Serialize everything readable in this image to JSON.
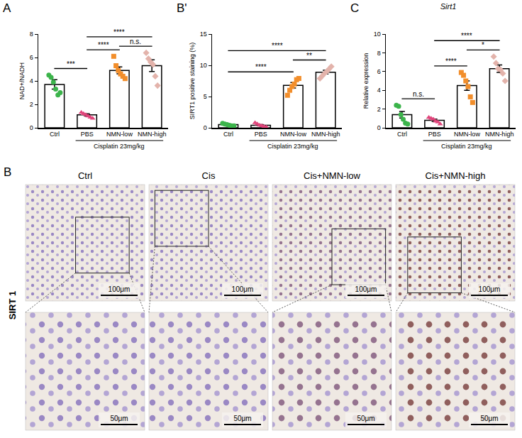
{
  "panels": [
    "A",
    "B'",
    "C"
  ],
  "chart_data": [
    {
      "type": "bar",
      "ylabel": "NAD+/NADH",
      "categories": [
        "Ctrl",
        "PBS",
        "NMN-low",
        "NMN-high"
      ],
      "values": [
        3.7,
        1.1,
        4.9,
        5.3
      ],
      "errors": [
        0.4,
        0.1,
        0.3,
        0.5
      ],
      "points": [
        [
          4.5,
          4.3,
          3.9,
          3.3,
          2.8,
          3.0
        ],
        [
          1.3,
          1.2,
          1.1,
          1.0,
          0.9,
          0.8
        ],
        [
          6.1,
          5.3,
          4.9,
          4.6,
          4.4,
          4.2
        ],
        [
          6.4,
          5.9,
          5.6,
          5.4,
          4.4,
          3.6
        ]
      ],
      "colors": [
        "#3cb44b",
        "#e0457b",
        "#f28e2b",
        "#e3b3ab"
      ],
      "markers": [
        "circle",
        "triangle-up",
        "square",
        "diamond"
      ],
      "ylim": [
        0,
        8
      ],
      "yticks": [
        0,
        2,
        4,
        6,
        8
      ],
      "group": {
        "label": "Cisplatin 23mg/kg",
        "categories": [
          "PBS",
          "NMN-low",
          "NMN-high"
        ]
      },
      "comparisons": [
        {
          "from": "Ctrl",
          "to": "PBS",
          "label": "***"
        },
        {
          "from": "PBS",
          "to": "NMN-low",
          "label": "****"
        },
        {
          "from": "NMN-low",
          "to": "NMN-high",
          "label": "n.s."
        },
        {
          "from": "PBS",
          "to": "NMN-high",
          "label": "****"
        }
      ]
    },
    {
      "type": "bar",
      "ylabel": "SIRT1 positive staining (%)",
      "categories": [
        "Ctrl",
        "PBS",
        "NMN-low",
        "NMN-high"
      ],
      "values": [
        0.5,
        0.4,
        6.8,
        8.9
      ],
      "errors": [
        0.07,
        0.1,
        0.45,
        0.3
      ],
      "points": [
        [
          0.7,
          0.6,
          0.5,
          0.4,
          0.3,
          0.3
        ],
        [
          0.8,
          0.6,
          0.4,
          0.3,
          0.2,
          0.1
        ],
        [
          5.2,
          6.0,
          6.6,
          7.0,
          7.7,
          7.9
        ],
        [
          7.9,
          8.3,
          8.7,
          9.0,
          9.4,
          9.8
        ]
      ],
      "colors": [
        "#3cb44b",
        "#e0457b",
        "#f28e2b",
        "#e3b3ab"
      ],
      "markers": [
        "circle",
        "triangle-up",
        "square",
        "diamond"
      ],
      "ylim": [
        0,
        15
      ],
      "yticks": [
        0,
        5,
        10,
        15
      ],
      "group": {
        "label": "Cisplatin 23mg/kg",
        "categories": [
          "PBS",
          "NMN-low",
          "NMN-high"
        ]
      },
      "comparisons": [
        {
          "from": "Ctrl",
          "to": "NMN-low",
          "label": "****"
        },
        {
          "from": "NMN-low",
          "to": "NMN-high",
          "label": "**"
        },
        {
          "from": "Ctrl",
          "to": "NMN-high",
          "label": "****"
        }
      ]
    },
    {
      "type": "bar",
      "title": "Sirt1",
      "ylabel": "Relative expression",
      "categories": [
        "Ctrl",
        "PBS",
        "NMN-low",
        "NMN-high"
      ],
      "values": [
        1.4,
        0.8,
        4.5,
        6.3
      ],
      "errors": [
        0.35,
        0.12,
        0.5,
        0.4
      ],
      "points": [
        [
          2.4,
          2.3,
          1.4,
          0.9,
          0.5,
          0.4
        ],
        [
          1.1,
          1.0,
          0.9,
          0.7,
          0.6,
          0.4
        ],
        [
          5.9,
          5.6,
          5.0,
          4.4,
          3.3,
          2.7
        ],
        [
          7.6,
          6.9,
          6.3,
          6.2,
          5.8,
          5.0
        ]
      ],
      "colors": [
        "#3cb44b",
        "#e0457b",
        "#f28e2b",
        "#e3b3ab"
      ],
      "markers": [
        "circle",
        "triangle-up",
        "square",
        "diamond"
      ],
      "ylim": [
        0,
        10
      ],
      "yticks": [
        0,
        2,
        4,
        6,
        8,
        10
      ],
      "group": {
        "label": "Cisplatin 23mg/kg",
        "categories": [
          "PBS",
          "NMN-low",
          "NMN-high"
        ]
      },
      "comparisons": [
        {
          "from": "Ctrl",
          "to": "PBS",
          "label": "n.s."
        },
        {
          "from": "PBS",
          "to": "NMN-low",
          "label": "****"
        },
        {
          "from": "NMN-low",
          "to": "NMN-high",
          "label": "*"
        },
        {
          "from": "PBS",
          "to": "NMN-high",
          "label": "****"
        }
      ]
    }
  ],
  "image_panel": {
    "letter": "B",
    "row_label": "SIRT 1",
    "columns": [
      "Ctrl",
      "Cis",
      "Cis+NMN-low",
      "Cis+NMN-high"
    ],
    "scale_bars": [
      "100μm",
      "50μm"
    ]
  }
}
